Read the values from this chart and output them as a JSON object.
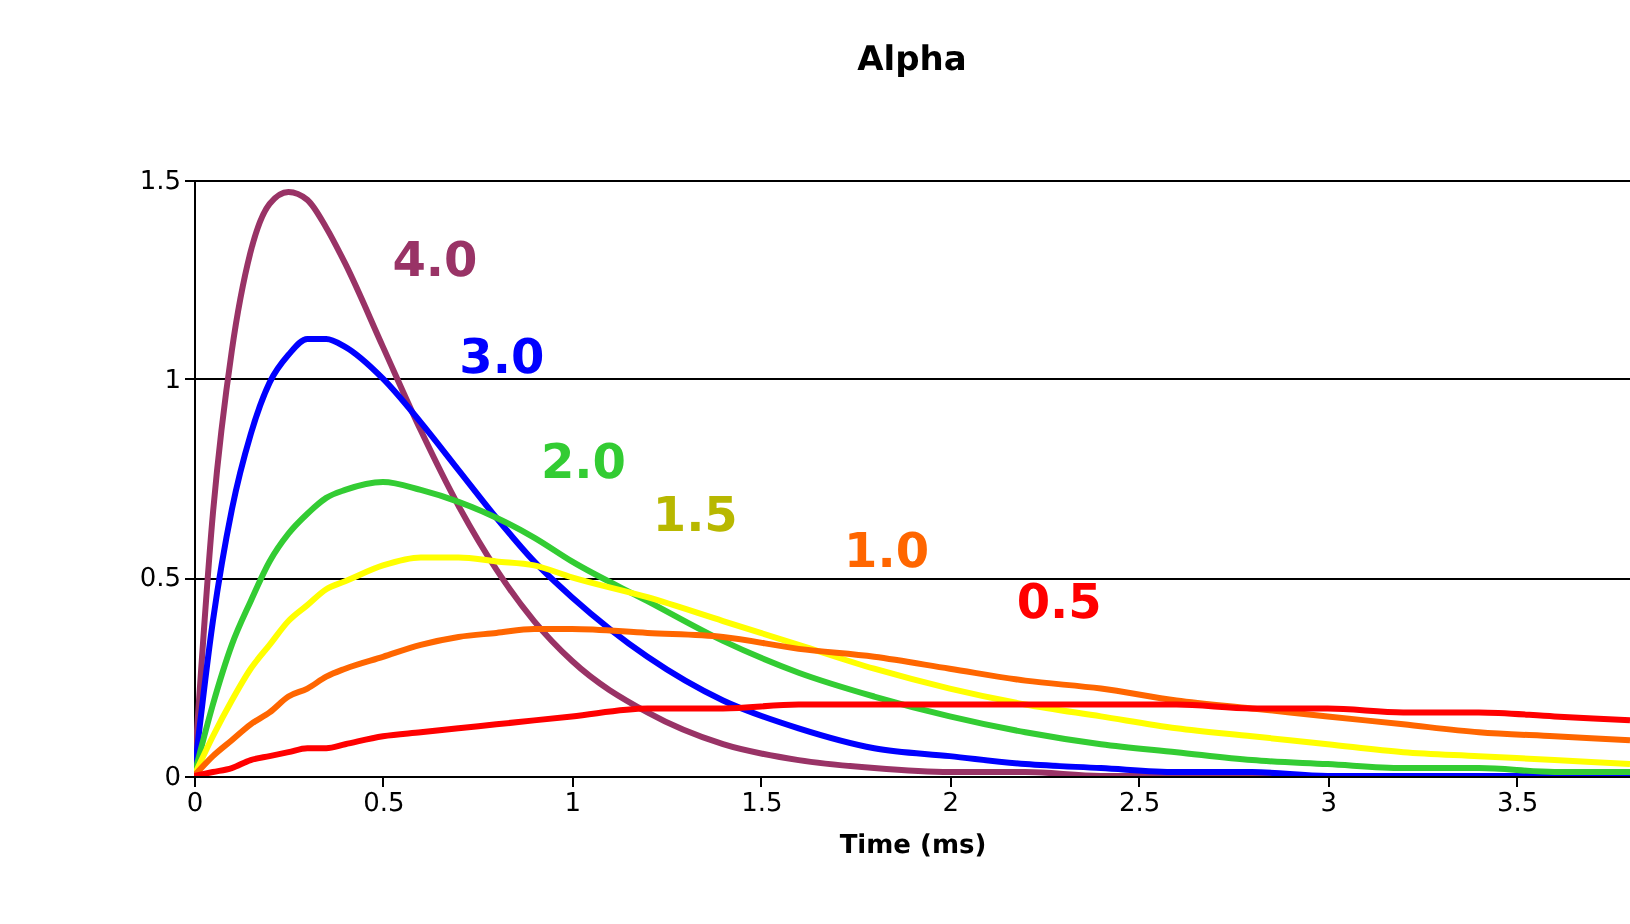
{
  "chart_data": {
    "type": "line",
    "title": "Alpha",
    "xlabel": "Time (ms)",
    "x": [
      0,
      0.05,
      0.1,
      0.15,
      0.2,
      0.25,
      0.3,
      0.35,
      0.4,
      0.5,
      0.6,
      0.7,
      0.8,
      0.9,
      1.0,
      1.2,
      1.4,
      1.6,
      1.8,
      2.0,
      2.2,
      2.4,
      2.6,
      2.8,
      3.0,
      3.2,
      3.4,
      3.6,
      3.8
    ],
    "series": [
      {
        "name": "4.0",
        "color": "#993366",
        "values": [
          0,
          0.66,
          1.07,
          1.32,
          1.44,
          1.47,
          1.45,
          1.38,
          1.29,
          1.08,
          0.87,
          0.68,
          0.52,
          0.39,
          0.29,
          0.16,
          0.08,
          0.04,
          0.02,
          0.01,
          0.01,
          0,
          0,
          0,
          0,
          null,
          null,
          null,
          null
        ]
      },
      {
        "name": "3.0",
        "color": "#0000ff",
        "values": [
          0,
          0.39,
          0.67,
          0.86,
          0.99,
          1.06,
          1.1,
          1.1,
          1.08,
          1.0,
          0.89,
          0.77,
          0.65,
          0.54,
          0.45,
          0.3,
          0.19,
          0.12,
          0.07,
          0.05,
          0.03,
          0.02,
          0.01,
          0.01,
          0,
          0,
          0,
          0,
          0
        ]
      },
      {
        "name": "2.0",
        "color": "#33cc33",
        "values": [
          0,
          0.18,
          0.33,
          0.44,
          0.54,
          0.61,
          0.66,
          0.7,
          0.72,
          0.74,
          0.72,
          0.69,
          0.65,
          0.6,
          0.54,
          0.44,
          0.34,
          0.26,
          0.2,
          0.15,
          0.11,
          0.08,
          0.06,
          0.04,
          0.03,
          0.02,
          0.02,
          0.01,
          0.01
        ]
      },
      {
        "name": "1.5",
        "color": "#ffff00",
        "values": [
          0,
          0.1,
          0.19,
          0.27,
          0.33,
          0.39,
          0.43,
          0.47,
          0.49,
          0.53,
          0.55,
          0.55,
          0.54,
          0.53,
          0.5,
          0.45,
          0.39,
          0.33,
          0.27,
          0.22,
          0.18,
          0.15,
          0.12,
          0.1,
          0.08,
          0.06,
          0.05,
          0.04,
          0.03
        ]
      },
      {
        "name": "1.0",
        "color": "#ff6600",
        "values": [
          0,
          0.05,
          0.09,
          0.13,
          0.16,
          0.2,
          0.22,
          0.25,
          0.27,
          0.3,
          0.33,
          0.35,
          0.36,
          0.37,
          0.37,
          0.36,
          0.35,
          0.32,
          0.3,
          0.27,
          0.24,
          0.22,
          0.19,
          0.17,
          0.15,
          0.13,
          0.11,
          0.1,
          0.09
        ]
      },
      {
        "name": "0.5",
        "color": "#ff0000",
        "values": [
          0,
          0.01,
          0.02,
          0.04,
          0.05,
          0.06,
          0.07,
          0.07,
          0.08,
          0.1,
          0.11,
          0.12,
          0.13,
          0.14,
          0.15,
          0.17,
          0.17,
          0.18,
          0.18,
          0.18,
          0.18,
          0.18,
          0.18,
          0.17,
          0.17,
          0.16,
          0.16,
          0.15,
          0.14
        ]
      }
    ],
    "xlim": [
      0,
      3.8
    ],
    "xticks": [
      0,
      0.5,
      1,
      1.5,
      2,
      2.5,
      3,
      3.5
    ],
    "ylim": [
      0,
      1.5
    ],
    "yticks": [
      0,
      0.5,
      1,
      1.5
    ],
    "grid": "y",
    "legend": false,
    "marker": "none",
    "line_style": "solid"
  }
}
